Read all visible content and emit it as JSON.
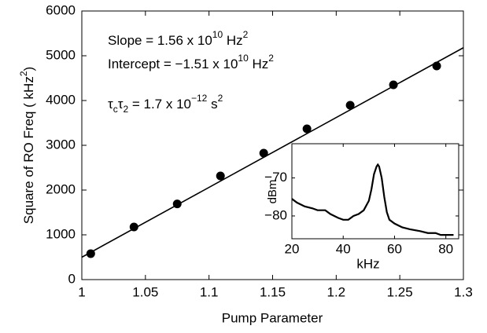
{
  "chart_data": [
    {
      "type": "scatter",
      "xlabel": "Pump Parameter",
      "ylabel": [
        "Square of RO Freq ( kHz",
        "2",
        ")"
      ],
      "annotations": [
        [
          "Slope = 1.56 x 10",
          "10",
          " Hz",
          "2"
        ],
        [
          "Intercept = −1.51 x 10",
          "10",
          " Hz",
          "2"
        ],
        [
          "τ",
          "c",
          "τ",
          "2",
          " = 1.7 x 10",
          "−12",
          " s",
          "2"
        ]
      ],
      "xlim": [
        1,
        1.3
      ],
      "xticks": [
        1,
        1.05,
        1.1,
        1.15,
        1.2,
        1.25,
        1.3
      ],
      "ylim": [
        0,
        6000
      ],
      "yticks": [
        0,
        1000,
        2000,
        3000,
        4000,
        5000,
        6000
      ],
      "series": [
        {
          "color": "#000000",
          "x": [
            1.007,
            1.041,
            1.075,
            1.109,
            1.143,
            1.177,
            1.211,
            1.245,
            1.279
          ],
          "values": [
            580,
            1175,
            1690,
            2316,
            2825,
            3368,
            3895,
            4351,
            4772
          ]
        },
        {
          "type": "line",
          "color": "#000000",
          "x": [
            1,
            1.3
          ],
          "values": [
            500,
            5180
          ]
        }
      ]
    },
    {
      "type": "line",
      "xlabel": "kHz",
      "ylabel": "dBm",
      "xlim": [
        20,
        85
      ],
      "xticks": [
        20,
        40,
        60,
        80
      ],
      "ylim": [
        -86,
        -61
      ],
      "yticks": [
        {
          "value": -70,
          "label": "−70"
        },
        {
          "value": -80,
          "label": "−80"
        }
      ],
      "series": [
        {
          "color": "#000000",
          "x": [
            20,
            22,
            25,
            28,
            30,
            33,
            35,
            38,
            40,
            42,
            44,
            46,
            48,
            50,
            51,
            52,
            53,
            53.5,
            54,
            55,
            56,
            57,
            58,
            60,
            63,
            66,
            70,
            73,
            76,
            78,
            80,
            83
          ],
          "values": [
            -75.5,
            -76.5,
            -77.5,
            -78,
            -78.5,
            -78.5,
            -79.5,
            -80.5,
            -81,
            -81,
            -80,
            -79.5,
            -78.5,
            -76,
            -73,
            -69,
            -67,
            -66.5,
            -67,
            -70,
            -75,
            -79,
            -81,
            -82,
            -83,
            -83.5,
            -84,
            -84.5,
            -84.5,
            -85,
            -85,
            -85
          ]
        }
      ]
    }
  ]
}
